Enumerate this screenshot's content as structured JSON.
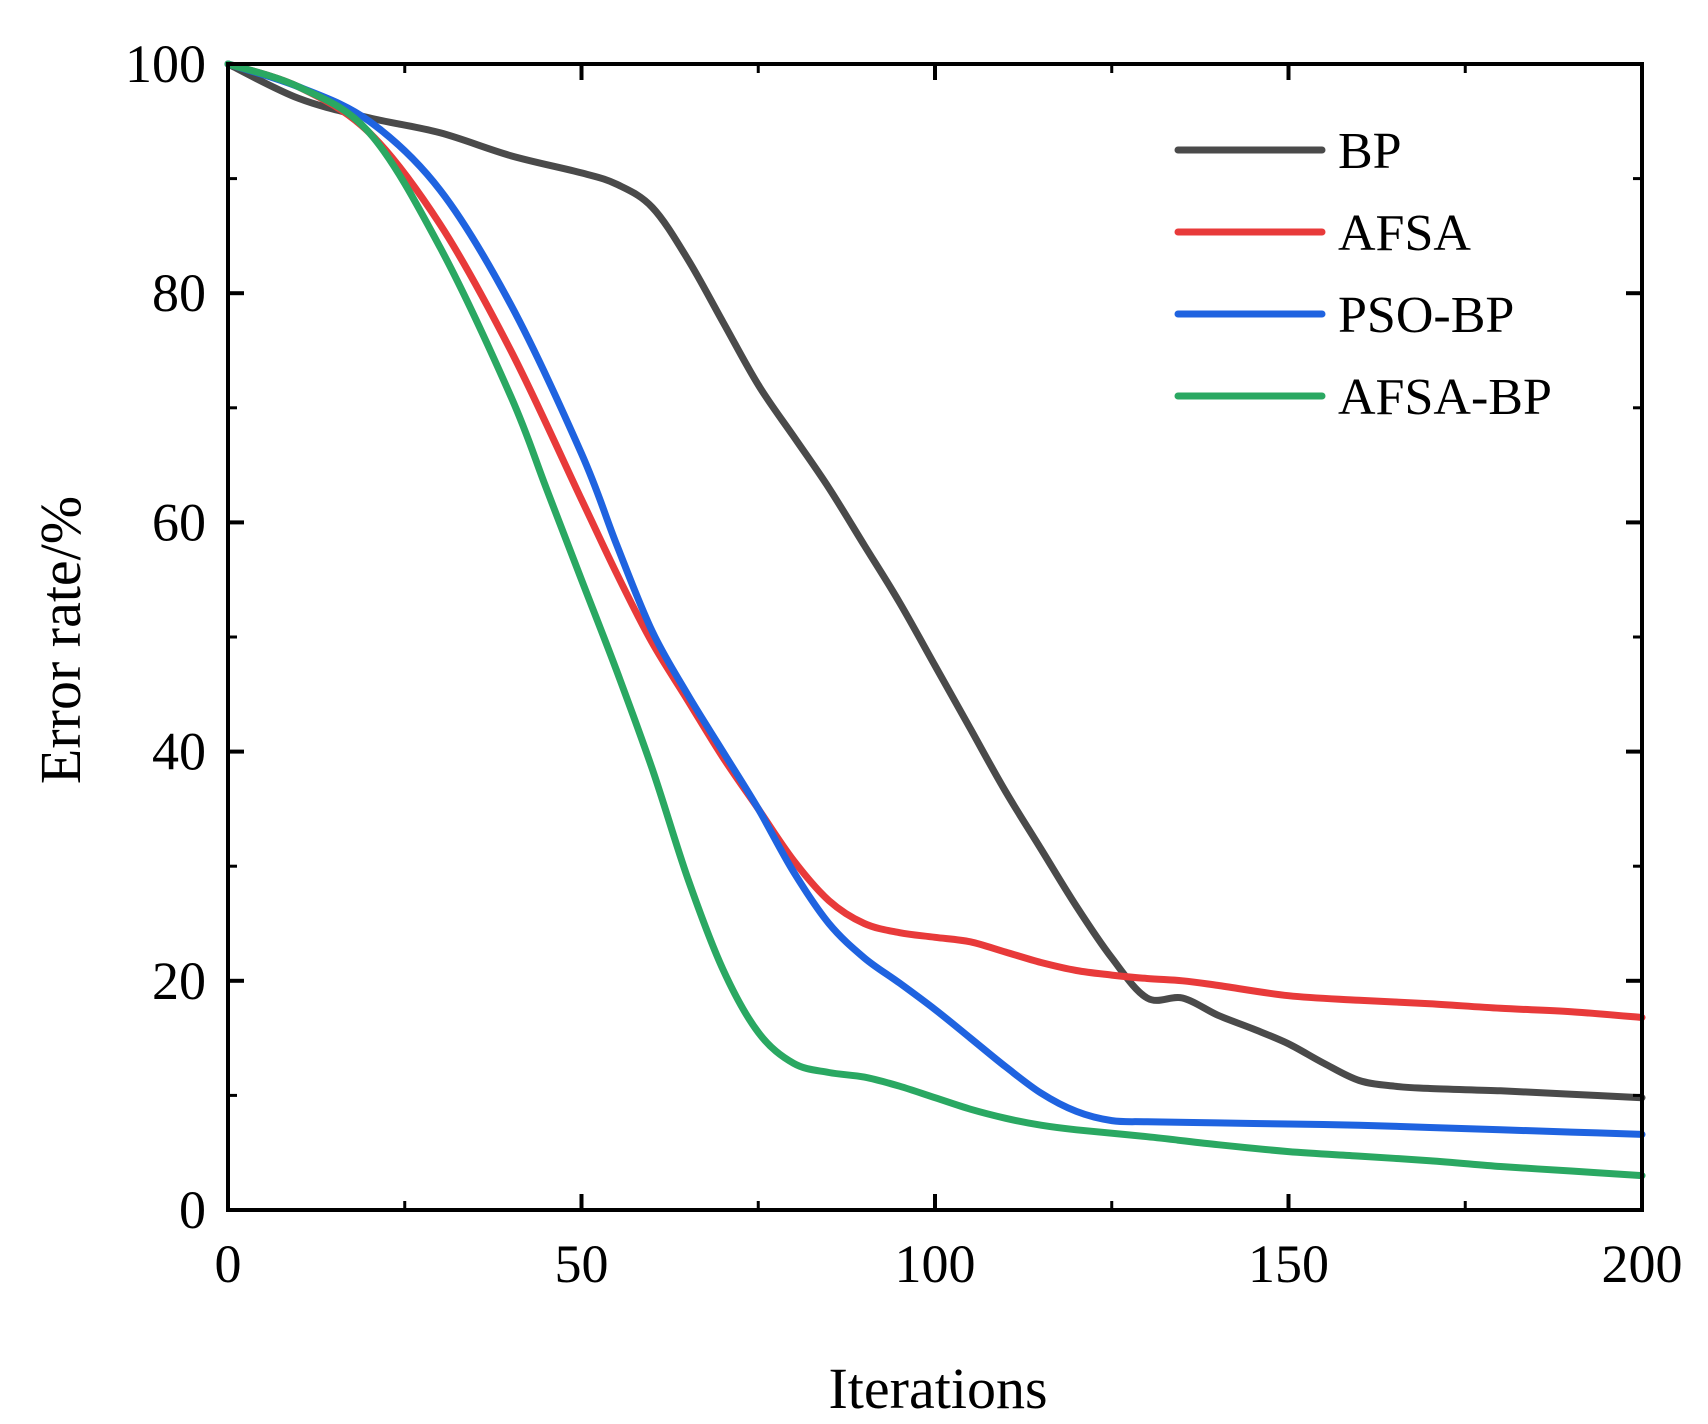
{
  "chart_data": {
    "type": "line",
    "title": "",
    "xlabel": "Iterations",
    "ylabel": "Error rate/%",
    "xlim": [
      0,
      200
    ],
    "ylim": [
      0,
      100
    ],
    "xticks": [
      0,
      50,
      100,
      150,
      200
    ],
    "yticks": [
      0,
      20,
      40,
      60,
      80,
      100
    ],
    "xtick_labels": [
      "0",
      "50",
      "100",
      "150",
      "200"
    ],
    "ytick_labels": [
      "0",
      "20",
      "40",
      "60",
      "80",
      "100"
    ],
    "grid": false,
    "legend_position": "top-right",
    "series": [
      {
        "name": "BP",
        "color": "#4a4a4a",
        "x": [
          0,
          10,
          20,
          30,
          40,
          50,
          55,
          60,
          65,
          70,
          75,
          80,
          85,
          90,
          95,
          100,
          105,
          110,
          115,
          120,
          125,
          130,
          135,
          140,
          145,
          150,
          155,
          160,
          165,
          170,
          180,
          190,
          200
        ],
        "y": [
          100,
          97,
          95.3,
          94,
          92,
          90.5,
          89.5,
          87.5,
          83,
          77.5,
          72,
          67.5,
          63,
          58,
          53,
          47.5,
          42,
          36.5,
          31.5,
          26.5,
          22,
          18.5,
          18.5,
          17,
          15.8,
          14.5,
          12.8,
          11.3,
          10.8,
          10.6,
          10.4,
          10.1,
          9.8
        ]
      },
      {
        "name": "AFSA",
        "color": "#e83a3a",
        "x": [
          0,
          10,
          20,
          30,
          40,
          50,
          55,
          60,
          65,
          70,
          75,
          80,
          85,
          90,
          95,
          100,
          105,
          110,
          115,
          120,
          125,
          130,
          135,
          140,
          150,
          160,
          170,
          180,
          190,
          200
        ],
        "y": [
          100,
          98,
          94,
          86,
          75,
          62,
          55.5,
          49.5,
          44.5,
          39.5,
          35,
          30.5,
          27,
          25,
          24.2,
          23.8,
          23.4,
          22.5,
          21.6,
          20.9,
          20.5,
          20.2,
          20,
          19.6,
          18.7,
          18.3,
          18,
          17.6,
          17.3,
          16.8
        ]
      },
      {
        "name": "PSO-BP",
        "color": "#1f63e0",
        "x": [
          0,
          10,
          20,
          30,
          40,
          50,
          55,
          60,
          65,
          70,
          75,
          80,
          85,
          90,
          95,
          100,
          105,
          110,
          115,
          120,
          125,
          130,
          140,
          150,
          160,
          170,
          180,
          190,
          200
        ],
        "y": [
          100,
          98,
          95,
          89,
          79,
          66,
          58,
          50.5,
          45,
          40,
          35,
          29.5,
          25,
          22,
          19.8,
          17.5,
          15,
          12.5,
          10.2,
          8.6,
          7.8,
          7.7,
          7.6,
          7.5,
          7.4,
          7.2,
          7.0,
          6.8,
          6.6
        ]
      },
      {
        "name": "AFSA-BP",
        "color": "#2aa862",
        "x": [
          0,
          10,
          20,
          30,
          40,
          45,
          50,
          55,
          60,
          65,
          70,
          75,
          80,
          85,
          90,
          95,
          100,
          105,
          110,
          115,
          120,
          130,
          140,
          150,
          160,
          170,
          180,
          190,
          200
        ],
        "y": [
          100,
          98,
          94,
          84,
          71,
          63,
          55,
          47,
          38.5,
          29,
          21,
          15.5,
          12.8,
          12,
          11.6,
          10.8,
          9.8,
          8.8,
          8.0,
          7.4,
          7.0,
          6.4,
          5.7,
          5.1,
          4.7,
          4.3,
          3.8,
          3.4,
          3.0
        ]
      }
    ]
  }
}
